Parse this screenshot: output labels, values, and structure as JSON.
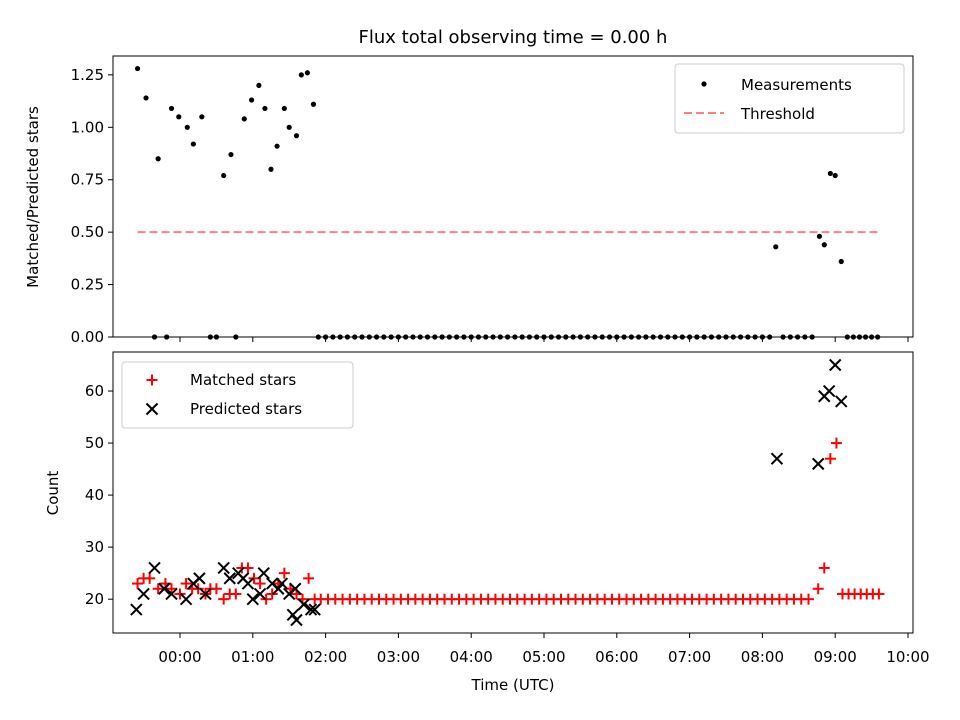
{
  "figure": {
    "title": "Flux total observing time = 0.00 h"
  },
  "chart_data": [
    {
      "panel": "top",
      "type": "scatter",
      "ylabel": "Matched/Predicted stars",
      "xlabel": "",
      "ylim": [
        0.0,
        1.3
      ],
      "yticks": [
        "0.00",
        "0.25",
        "0.50",
        "0.75",
        "1.00",
        "1.25"
      ],
      "legend": {
        "position": "top-right",
        "entries": [
          "Measurements",
          "Threshold"
        ]
      },
      "colors": {
        "measurements": "#000000",
        "threshold": "#ff8080"
      },
      "series": [
        {
          "name": "Measurements",
          "style": "dot",
          "points": [
            [
              "23:25",
              1.28
            ],
            [
              "23:32",
              1.14
            ],
            [
              "23:39",
              0.0
            ],
            [
              "23:42",
              0.85
            ],
            [
              "23:49",
              0.0
            ],
            [
              "23:53",
              1.09
            ],
            [
              "23:59",
              1.05
            ],
            [
              "00:06",
              1.0
            ],
            [
              "00:11",
              0.92
            ],
            [
              "00:18",
              1.05
            ],
            [
              "00:25",
              0.0
            ],
            [
              "00:30",
              0.0
            ],
            [
              "00:36",
              0.77
            ],
            [
              "00:42",
              0.87
            ],
            [
              "00:46",
              0.0
            ],
            [
              "00:53",
              1.04
            ],
            [
              "00:59",
              1.13
            ],
            [
              "01:05",
              1.2
            ],
            [
              "01:10",
              1.09
            ],
            [
              "01:15",
              0.8
            ],
            [
              "01:20",
              0.91
            ],
            [
              "01:26",
              1.09
            ],
            [
              "01:30",
              1.0
            ],
            [
              "01:36",
              0.96
            ],
            [
              "01:40",
              1.25
            ],
            [
              "01:45",
              1.26
            ],
            [
              "01:50",
              1.11
            ],
            [
              "01:54",
              0.0
            ],
            [
              "02:00",
              0.0
            ],
            [
              "02:06",
              0.0
            ],
            [
              "02:12",
              0.0
            ],
            [
              "02:18",
              0.0
            ],
            [
              "02:24",
              0.0
            ],
            [
              "02:30",
              0.0
            ],
            [
              "02:36",
              0.0
            ],
            [
              "02:42",
              0.0
            ],
            [
              "02:48",
              0.0
            ],
            [
              "02:54",
              0.0
            ],
            [
              "03:00",
              0.0
            ],
            [
              "03:06",
              0.0
            ],
            [
              "03:12",
              0.0
            ],
            [
              "03:18",
              0.0
            ],
            [
              "03:24",
              0.0
            ],
            [
              "03:30",
              0.0
            ],
            [
              "03:36",
              0.0
            ],
            [
              "03:42",
              0.0
            ],
            [
              "03:48",
              0.0
            ],
            [
              "03:54",
              0.0
            ],
            [
              "04:00",
              0.0
            ],
            [
              "04:06",
              0.0
            ],
            [
              "04:12",
              0.0
            ],
            [
              "04:18",
              0.0
            ],
            [
              "04:24",
              0.0
            ],
            [
              "04:30",
              0.0
            ],
            [
              "04:36",
              0.0
            ],
            [
              "04:42",
              0.0
            ],
            [
              "04:48",
              0.0
            ],
            [
              "04:54",
              0.0
            ],
            [
              "05:00",
              0.0
            ],
            [
              "05:06",
              0.0
            ],
            [
              "05:12",
              0.0
            ],
            [
              "05:18",
              0.0
            ],
            [
              "05:24",
              0.0
            ],
            [
              "05:30",
              0.0
            ],
            [
              "05:36",
              0.0
            ],
            [
              "05:42",
              0.0
            ],
            [
              "05:48",
              0.0
            ],
            [
              "05:54",
              0.0
            ],
            [
              "06:00",
              0.0
            ],
            [
              "06:06",
              0.0
            ],
            [
              "06:12",
              0.0
            ],
            [
              "06:18",
              0.0
            ],
            [
              "06:24",
              0.0
            ],
            [
              "06:30",
              0.0
            ],
            [
              "06:36",
              0.0
            ],
            [
              "06:42",
              0.0
            ],
            [
              "06:48",
              0.0
            ],
            [
              "06:54",
              0.0
            ],
            [
              "07:00",
              0.0
            ],
            [
              "07:06",
              0.0
            ],
            [
              "07:12",
              0.0
            ],
            [
              "07:18",
              0.0
            ],
            [
              "07:24",
              0.0
            ],
            [
              "07:30",
              0.0
            ],
            [
              "07:36",
              0.0
            ],
            [
              "07:42",
              0.0
            ],
            [
              "07:48",
              0.0
            ],
            [
              "07:54",
              0.0
            ],
            [
              "08:00",
              0.0
            ],
            [
              "08:06",
              0.0
            ],
            [
              "08:11",
              0.43
            ],
            [
              "08:17",
              0.0
            ],
            [
              "08:23",
              0.0
            ],
            [
              "08:29",
              0.0
            ],
            [
              "08:35",
              0.0
            ],
            [
              "08:41",
              0.0
            ],
            [
              "08:47",
              0.48
            ],
            [
              "08:51",
              0.44
            ],
            [
              "08:56",
              0.78
            ],
            [
              "09:00",
              0.77
            ],
            [
              "09:05",
              0.36
            ],
            [
              "09:10",
              0.0
            ],
            [
              "09:15",
              0.0
            ],
            [
              "09:20",
              0.0
            ],
            [
              "09:25",
              0.0
            ],
            [
              "09:30",
              0.0
            ],
            [
              "09:35",
              0.0
            ]
          ]
        },
        {
          "name": "Threshold",
          "style": "dashed-line",
          "points": [
            [
              "23:25",
              0.5
            ],
            [
              "09:35",
              0.5
            ]
          ]
        }
      ]
    },
    {
      "panel": "bottom",
      "type": "scatter",
      "xlabel": "Time (UTC)",
      "ylabel": "Count",
      "ylim": [
        13.5,
        67.5
      ],
      "yticks": [
        "20",
        "30",
        "40",
        "50",
        "60"
      ],
      "xticks": [
        "00:00",
        "01:00",
        "02:00",
        "03:00",
        "04:00",
        "05:00",
        "06:00",
        "07:00",
        "08:00",
        "09:00",
        "10:00"
      ],
      "legend": {
        "position": "top-left",
        "entries": [
          "Matched stars",
          "Predicted stars"
        ]
      },
      "colors": {
        "matched": "#ff0000",
        "predicted": "#000000"
      },
      "series": [
        {
          "name": "Matched stars",
          "marker": "plus",
          "points": [
            [
              "23:25",
              23
            ],
            [
              "23:30",
              24
            ],
            [
              "23:35",
              24
            ],
            [
              "23:42",
              22
            ],
            [
              "23:48",
              23
            ],
            [
              "23:53",
              22
            ],
            [
              "00:00",
              21
            ],
            [
              "00:05",
              23
            ],
            [
              "00:10",
              22
            ],
            [
              "00:15",
              22
            ],
            [
              "00:21",
              21
            ],
            [
              "00:25",
              22
            ],
            [
              "00:30",
              22
            ],
            [
              "00:36",
              20
            ],
            [
              "00:41",
              21
            ],
            [
              "00:46",
              21
            ],
            [
              "00:51",
              26
            ],
            [
              "00:56",
              26
            ],
            [
              "01:01",
              24
            ],
            [
              "01:06",
              23
            ],
            [
              "01:11",
              20
            ],
            [
              "01:16",
              21
            ],
            [
              "01:21",
              23
            ],
            [
              "01:26",
              25
            ],
            [
              "01:31",
              22
            ],
            [
              "01:36",
              21
            ],
            [
              "01:41",
              20
            ],
            [
              "01:46",
              24
            ],
            [
              "01:51",
              20
            ],
            [
              "01:56",
              20
            ],
            [
              "02:02",
              20
            ],
            [
              "02:08",
              20
            ],
            [
              "02:14",
              20
            ],
            [
              "02:20",
              20
            ],
            [
              "02:26",
              20
            ],
            [
              "02:32",
              20
            ],
            [
              "02:38",
              20
            ],
            [
              "02:44",
              20
            ],
            [
              "02:50",
              20
            ],
            [
              "02:56",
              20
            ],
            [
              "03:02",
              20
            ],
            [
              "03:08",
              20
            ],
            [
              "03:14",
              20
            ],
            [
              "03:20",
              20
            ],
            [
              "03:26",
              20
            ],
            [
              "03:32",
              20
            ],
            [
              "03:38",
              20
            ],
            [
              "03:44",
              20
            ],
            [
              "03:50",
              20
            ],
            [
              "03:56",
              20
            ],
            [
              "04:02",
              20
            ],
            [
              "04:08",
              20
            ],
            [
              "04:14",
              20
            ],
            [
              "04:20",
              20
            ],
            [
              "04:26",
              20
            ],
            [
              "04:32",
              20
            ],
            [
              "04:38",
              20
            ],
            [
              "04:44",
              20
            ],
            [
              "04:50",
              20
            ],
            [
              "04:56",
              20
            ],
            [
              "05:02",
              20
            ],
            [
              "05:08",
              20
            ],
            [
              "05:14",
              20
            ],
            [
              "05:20",
              20
            ],
            [
              "05:26",
              20
            ],
            [
              "05:32",
              20
            ],
            [
              "05:38",
              20
            ],
            [
              "05:44",
              20
            ],
            [
              "05:50",
              20
            ],
            [
              "05:56",
              20
            ],
            [
              "06:02",
              20
            ],
            [
              "06:08",
              20
            ],
            [
              "06:14",
              20
            ],
            [
              "06:20",
              20
            ],
            [
              "06:26",
              20
            ],
            [
              "06:32",
              20
            ],
            [
              "06:38",
              20
            ],
            [
              "06:44",
              20
            ],
            [
              "06:50",
              20
            ],
            [
              "06:56",
              20
            ],
            [
              "07:02",
              20
            ],
            [
              "07:08",
              20
            ],
            [
              "07:14",
              20
            ],
            [
              "07:20",
              20
            ],
            [
              "07:26",
              20
            ],
            [
              "07:32",
              20
            ],
            [
              "07:38",
              20
            ],
            [
              "07:44",
              20
            ],
            [
              "07:50",
              20
            ],
            [
              "07:56",
              20
            ],
            [
              "08:02",
              20
            ],
            [
              "08:08",
              20
            ],
            [
              "08:14",
              20
            ],
            [
              "08:20",
              20
            ],
            [
              "08:26",
              20
            ],
            [
              "08:32",
              20
            ],
            [
              "08:38",
              20
            ],
            [
              "08:46",
              22
            ],
            [
              "08:51",
              26
            ],
            [
              "08:56",
              47
            ],
            [
              "09:01",
              50
            ],
            [
              "09:06",
              21
            ],
            [
              "09:11",
              21
            ],
            [
              "09:16",
              21
            ],
            [
              "09:21",
              21
            ],
            [
              "09:26",
              21
            ],
            [
              "09:31",
              21
            ],
            [
              "09:36",
              21
            ]
          ]
        },
        {
          "name": "Predicted stars",
          "marker": "x",
          "points": [
            [
              "23:24",
              18
            ],
            [
              "23:30",
              21
            ],
            [
              "23:39",
              26
            ],
            [
              "23:47",
              22
            ],
            [
              "23:53",
              21
            ],
            [
              "00:05",
              20
            ],
            [
              "00:11",
              23
            ],
            [
              "00:16",
              24
            ],
            [
              "00:21",
              21
            ],
            [
              "00:36",
              26
            ],
            [
              "00:41",
              24
            ],
            [
              "00:48",
              25
            ],
            [
              "00:52",
              24
            ],
            [
              "00:56",
              23
            ],
            [
              "01:00",
              20
            ],
            [
              "01:06",
              21
            ],
            [
              "01:09",
              25
            ],
            [
              "01:16",
              23
            ],
            [
              "01:21",
              22
            ],
            [
              "01:24",
              23
            ],
            [
              "01:30",
              21
            ],
            [
              "01:35",
              22
            ],
            [
              "01:33",
              17
            ],
            [
              "01:36",
              16
            ],
            [
              "01:42",
              19
            ],
            [
              "01:48",
              18
            ],
            [
              "01:51",
              18
            ],
            [
              "08:12",
              47
            ],
            [
              "08:46",
              46
            ],
            [
              "08:51",
              59
            ],
            [
              "08:55",
              60
            ],
            [
              "09:00",
              65
            ],
            [
              "09:05",
              58
            ]
          ]
        }
      ]
    }
  ]
}
